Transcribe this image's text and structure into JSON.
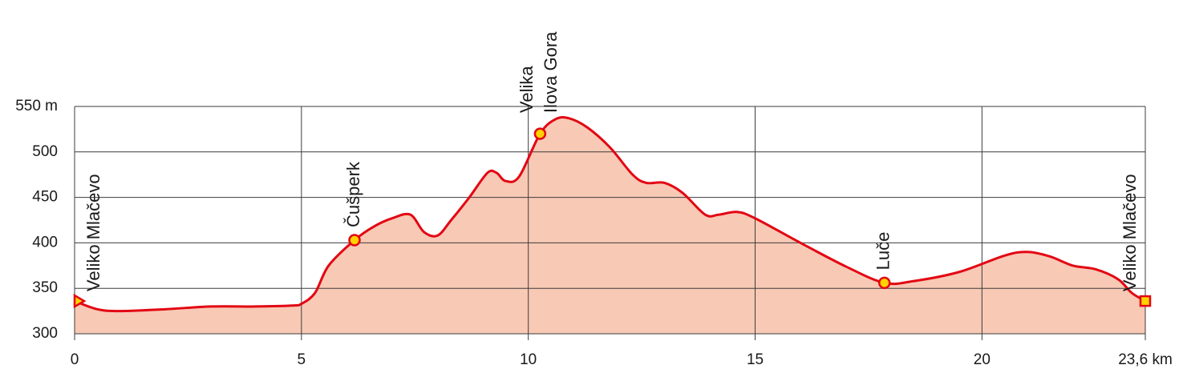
{
  "chart_data": {
    "type": "area",
    "x": [
      0,
      0.5,
      1,
      2,
      3,
      4,
      4.8,
      5,
      5.3,
      5.6,
      6.17,
      6.6,
      7,
      7.4,
      7.7,
      8,
      8.3,
      8.7,
      9.1,
      9.3,
      9.5,
      9.8,
      10.26,
      10.6,
      10.9,
      11.3,
      11.8,
      12.3,
      12.6,
      13,
      13.4,
      13.9,
      14.2,
      14.6,
      15,
      16,
      17,
      17.85,
      18.5,
      19.5,
      20.5,
      21,
      21.5,
      22,
      22.5,
      23,
      23.3,
      23.6
    ],
    "values": [
      336,
      327,
      325,
      327,
      330,
      330,
      331,
      333,
      345,
      375,
      403,
      418,
      427,
      431,
      412,
      408,
      425,
      450,
      477,
      477,
      468,
      473,
      520,
      536,
      537,
      527,
      505,
      475,
      466,
      466,
      455,
      431,
      431,
      434,
      427,
      400,
      374,
      356,
      358,
      368,
      386,
      390,
      385,
      375,
      371,
      360,
      345,
      336
    ],
    "color": "#e30613",
    "fill_color": "#f8c9b5",
    "xlim": [
      0,
      23.6
    ],
    "xticks": [
      0,
      5,
      10,
      15,
      20,
      {
        "value": 23.6,
        "label": "23,6 km"
      }
    ],
    "ylim": [
      300,
      550
    ],
    "yticks": [
      300,
      350,
      400,
      450,
      500,
      {
        "value": 550,
        "label": "550 m"
      }
    ],
    "grid": true,
    "waypoints": [
      {
        "label_lines": [
          "Veliko Mlačevo"
        ],
        "x": 0,
        "y": 336,
        "marker": "triangle"
      },
      {
        "label_lines": [
          "Čušperk"
        ],
        "x": 6.17,
        "y": 403,
        "marker": "circle"
      },
      {
        "label_lines": [
          "Velika",
          "Ilova Gora"
        ],
        "x": 10.26,
        "y": 520,
        "marker": "circle"
      },
      {
        "label_lines": [
          "Luče"
        ],
        "x": 17.85,
        "y": 356,
        "marker": "circle"
      },
      {
        "label_lines": [
          "Veliko Mlačevo"
        ],
        "x": 23.6,
        "y": 336,
        "marker": "square"
      }
    ]
  }
}
